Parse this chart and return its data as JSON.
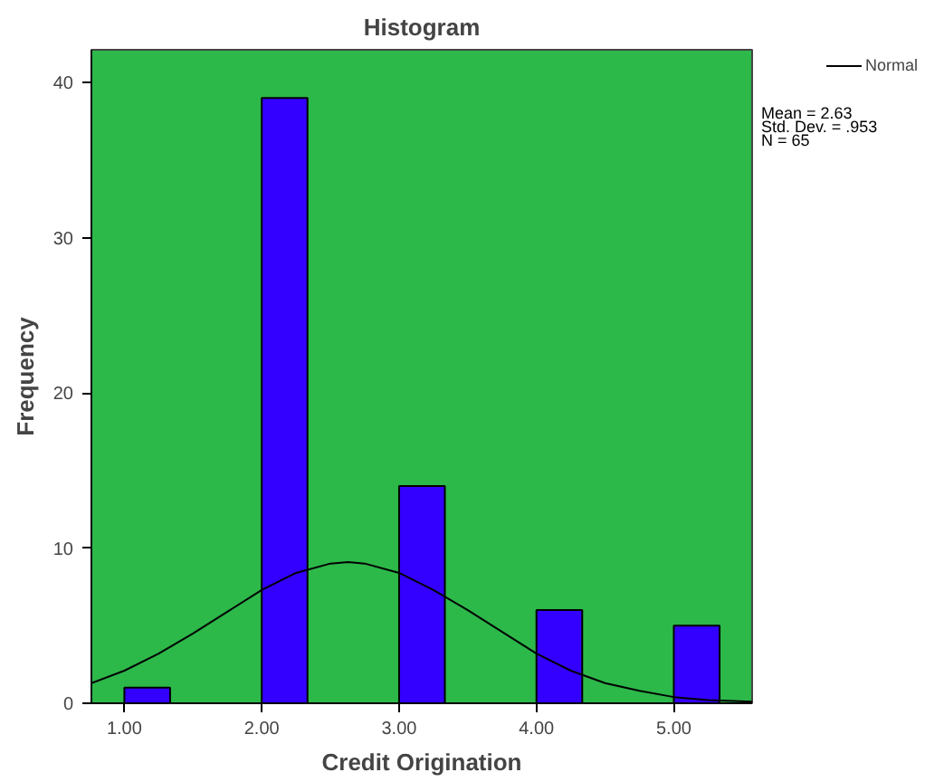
{
  "chart_data": {
    "type": "histogram",
    "title": "Histogram",
    "xlabel": "Credit Origination",
    "ylabel": "Frequency",
    "bins": [
      1.0,
      1.333,
      1.667,
      2.0,
      2.333,
      2.667,
      3.0,
      3.333,
      3.667,
      4.0,
      4.333,
      4.667,
      5.0,
      5.333
    ],
    "values": [
      1,
      0,
      0,
      39,
      0,
      0,
      14,
      0,
      0,
      6,
      0,
      0,
      5
    ],
    "color": "#3300ff",
    "series": [
      {
        "type": "line",
        "name": "Normal",
        "color": "#000000",
        "x": [
          0.76,
          1.0,
          1.25,
          1.5,
          1.75,
          2.0,
          2.25,
          2.5,
          2.63,
          2.75,
          3.0,
          3.25,
          3.5,
          3.75,
          4.0,
          4.25,
          4.5,
          4.75,
          5.0,
          5.25,
          5.57
        ],
        "values": [
          1.3,
          2.1,
          3.2,
          4.5,
          5.9,
          7.3,
          8.4,
          9.0,
          9.1,
          9.0,
          8.4,
          7.3,
          6.0,
          4.6,
          3.2,
          2.1,
          1.3,
          0.8,
          0.4,
          0.2,
          0.1
        ]
      }
    ],
    "annotations": [
      "Mean = 2.63",
      "Std. Dev. = .953",
      "N = 65"
    ],
    "xlim": [
      0.76,
      5.57
    ],
    "ylim": [
      0,
      42.1
    ],
    "xticks": [
      {
        "value": 1,
        "label": "1.00"
      },
      {
        "value": 2,
        "label": "2.00"
      },
      {
        "value": 3,
        "label": "3.00"
      },
      {
        "value": 4,
        "label": "4.00"
      },
      {
        "value": 5,
        "label": "5.00"
      }
    ],
    "yticks": [
      0,
      10,
      20,
      30,
      40
    ],
    "grid": false,
    "legend": "top right"
  }
}
